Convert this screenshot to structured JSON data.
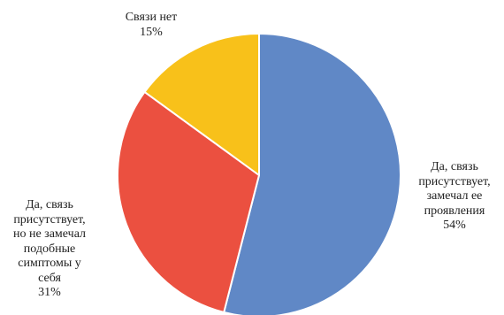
{
  "chart_data": {
    "type": "pie",
    "title": "",
    "start_angle_deg": 0,
    "direction": "clockwise",
    "slices": [
      {
        "label": "Да, связь присутствует, замечал ее проявления",
        "lines": [
          "Да, связь",
          "присутствует,",
          "замечал ее",
          "проявления"
        ],
        "value": 54,
        "value_label": "54%",
        "color": "#6088c6"
      },
      {
        "label": "Да, связь присутствует, но не замечал подобные симптомы у себя",
        "lines": [
          "Да, связь",
          "присутствует,",
          "но не замечал",
          "подобные",
          "симптомы у",
          "себя"
        ],
        "value": 31,
        "value_label": "31%",
        "color": "#eb5040"
      },
      {
        "label": "Связи нет",
        "lines": [
          "Связи нет"
        ],
        "value": 15,
        "value_label": "15%",
        "color": "#f8c11a"
      }
    ]
  }
}
